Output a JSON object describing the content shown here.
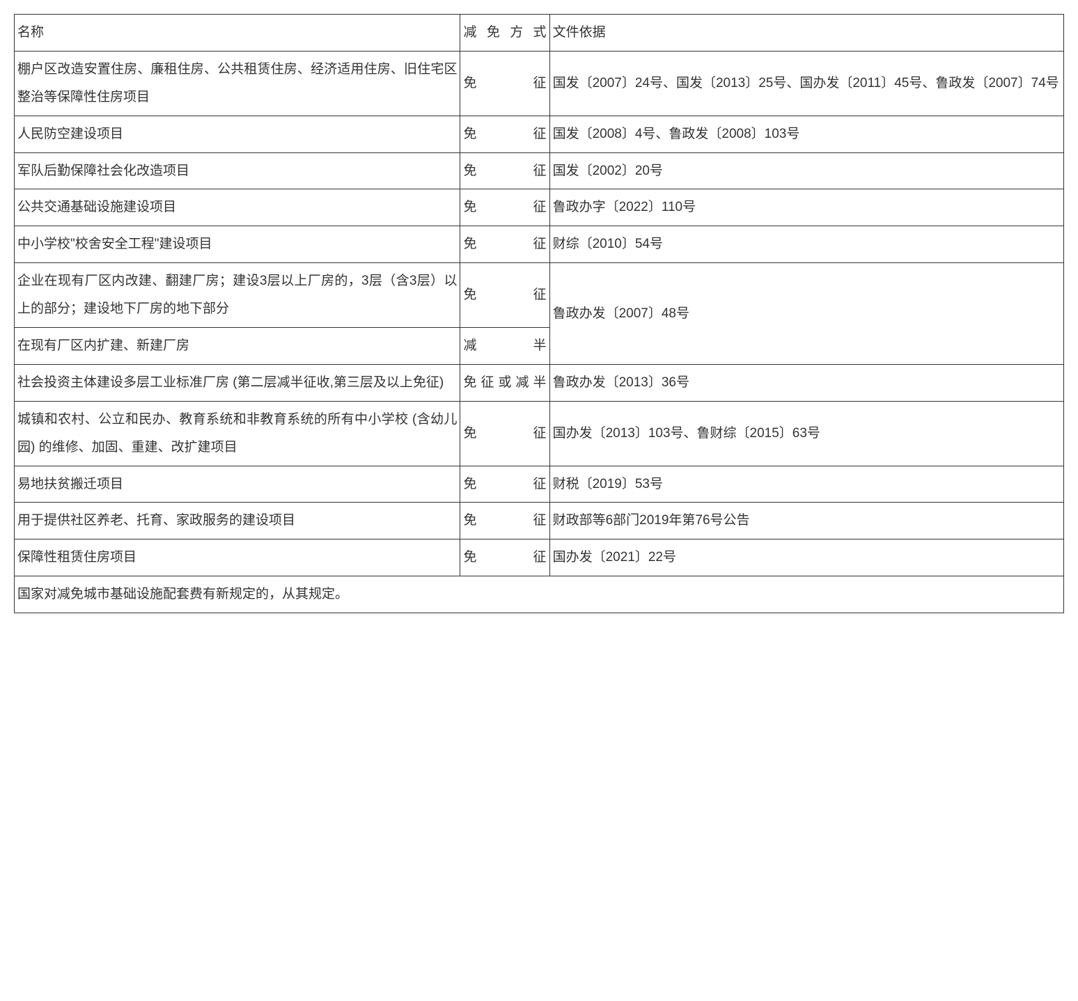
{
  "headers": {
    "name": "名称",
    "method": "减免方式",
    "basis": "文件依据"
  },
  "rows": [
    {
      "name": "棚户区改造安置住房、廉租住房、公共租赁住房、经济适用住房、旧住宅区整治等保障性住房项目",
      "method": "免征",
      "basis": "国发〔2007〕24号、国发〔2013〕25号、国办发〔2011〕45号、鲁政发〔2007〕74号"
    },
    {
      "name": "人民防空建设项目",
      "method": "免征",
      "basis": "国发〔2008〕4号、鲁政发〔2008〕103号"
    },
    {
      "name": "军队后勤保障社会化改造项目",
      "method": "免征",
      "basis": "国发〔2002〕20号"
    },
    {
      "name": "公共交通基础设施建设项目",
      "method": "免征",
      "basis": "鲁政办字〔2022〕110号"
    },
    {
      "name": "中小学校\"校舍安全工程\"建设项目",
      "method": "免征",
      "basis": "财综〔2010〕54号"
    },
    {
      "name": "企业在现有厂区内改建、翻建厂房；建设3层以上厂房的，3层（含3层）以上的部分；建设地下厂房的地下部分",
      "method": "免征",
      "basis": "鲁政办发〔2007〕48号",
      "basis_rowspan": 2
    },
    {
      "name": "在现有厂区内扩建、新建厂房",
      "method": "减半"
    },
    {
      "name": "社会投资主体建设多层工业标准厂房 (第二层减半征收,第三层及以上免征)",
      "method": "免征或减半",
      "basis": "鲁政办发〔2013〕36号"
    },
    {
      "name": "城镇和农村、公立和民办、教育系统和非教育系统的所有中小学校 (含幼儿园) 的维修、加固、重建、改扩建项目",
      "method": "免征",
      "basis": "国办发〔2013〕103号、鲁财综〔2015〕63号"
    },
    {
      "name": "易地扶贫搬迁项目",
      "method": "免征",
      "basis": "财税〔2019〕53号"
    },
    {
      "name": "用于提供社区养老、托育、家政服务的建设项目",
      "method": "免征",
      "basis": "财政部等6部门2019年第76号公告"
    },
    {
      "name": "保障性租赁住房项目",
      "method": "免征",
      "basis": "国办发〔2021〕22号"
    }
  ],
  "footer": "国家对减免城市基础设施配套费有新规定的，从其规定。"
}
